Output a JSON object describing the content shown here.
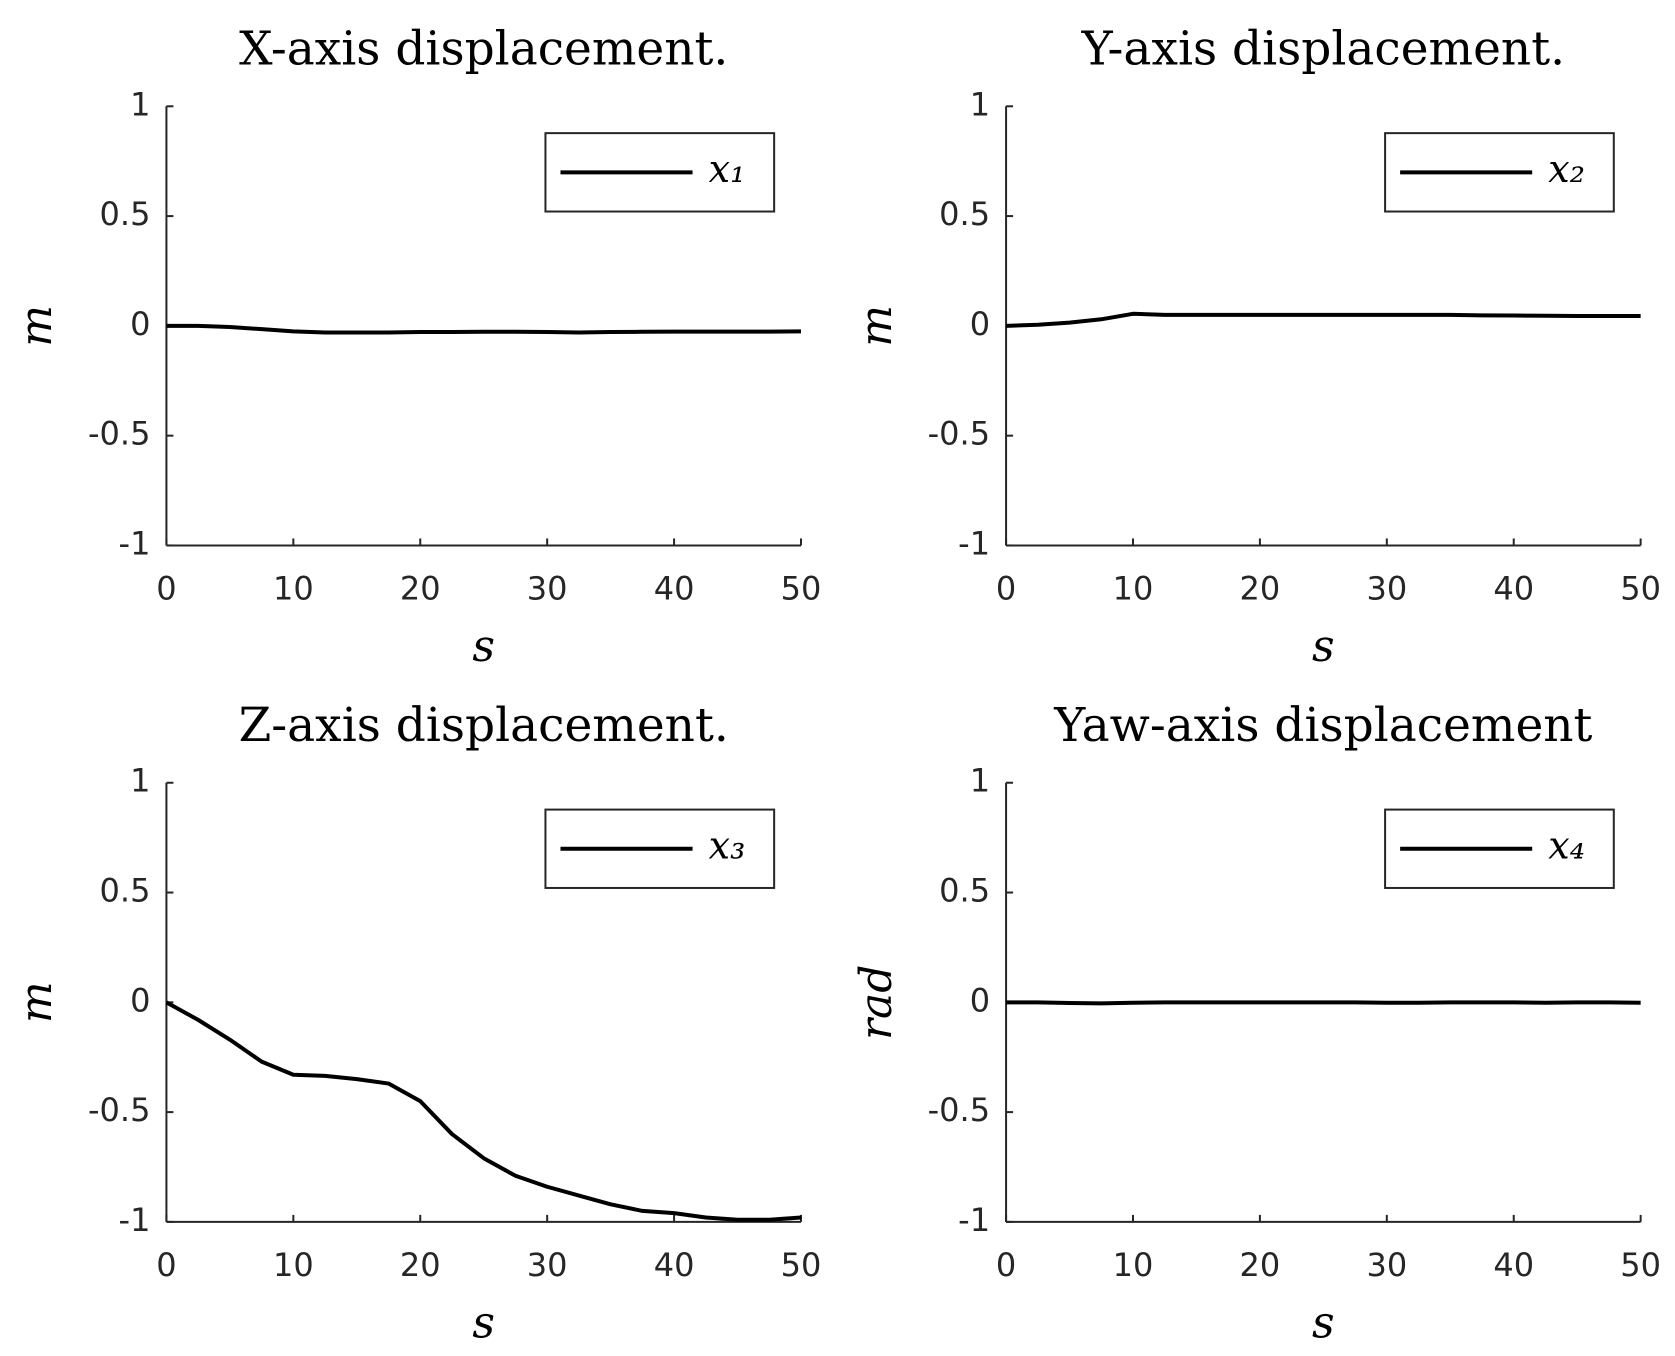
{
  "chart_data": [
    {
      "type": "line",
      "title": "X-axis displacement.",
      "xlabel": "s",
      "ylabel": "m",
      "x": [
        0,
        2.5,
        5,
        7.5,
        10,
        12.5,
        15,
        17.5,
        20,
        22.5,
        25,
        27.5,
        30,
        32.5,
        35,
        37.5,
        40,
        42.5,
        45,
        47.5,
        50
      ],
      "series": [
        {
          "name": "x₁",
          "color": "#000000",
          "values": [
            0,
            0,
            -0.005,
            -0.015,
            -0.025,
            -0.03,
            -0.03,
            -0.03,
            -0.028,
            -0.028,
            -0.027,
            -0.027,
            -0.028,
            -0.03,
            -0.028,
            -0.027,
            -0.026,
            -0.026,
            -0.026,
            -0.026,
            -0.025
          ]
        }
      ],
      "xlim": [
        0,
        50
      ],
      "ylim": [
        -1,
        1
      ],
      "xticks": [
        0,
        10,
        20,
        30,
        40,
        50
      ],
      "yticks": [
        -1,
        -0.5,
        0,
        0.5,
        1
      ],
      "legend": "upper right"
    },
    {
      "type": "line",
      "title": "Y-axis displacement.",
      "xlabel": "s",
      "ylabel": "m",
      "x": [
        0,
        2.5,
        5,
        7.5,
        10,
        12.5,
        15,
        17.5,
        20,
        22.5,
        25,
        27.5,
        30,
        32.5,
        35,
        37.5,
        40,
        42.5,
        45,
        47.5,
        50
      ],
      "series": [
        {
          "name": "x₂",
          "color": "#000000",
          "values": [
            0,
            0.005,
            0.015,
            0.03,
            0.055,
            0.05,
            0.05,
            0.05,
            0.05,
            0.05,
            0.05,
            0.05,
            0.05,
            0.05,
            0.05,
            0.048,
            0.047,
            0.046,
            0.045,
            0.045,
            0.045
          ]
        }
      ],
      "xlim": [
        0,
        50
      ],
      "ylim": [
        -1,
        1
      ],
      "xticks": [
        0,
        10,
        20,
        30,
        40,
        50
      ],
      "yticks": [
        -1,
        -0.5,
        0,
        0.5,
        1
      ],
      "legend": "upper right"
    },
    {
      "type": "line",
      "title": "Z-axis displacement.",
      "xlabel": "s",
      "ylabel": "m",
      "x": [
        0,
        2.5,
        5,
        7.5,
        10,
        12.5,
        15,
        17.5,
        20,
        22.5,
        25,
        27.5,
        30,
        32.5,
        35,
        37.5,
        40,
        42.5,
        45,
        47.5,
        50
      ],
      "series": [
        {
          "name": "x₃",
          "color": "#000000",
          "values": [
            0,
            -0.08,
            -0.17,
            -0.27,
            -0.33,
            -0.335,
            -0.35,
            -0.37,
            -0.45,
            -0.6,
            -0.71,
            -0.79,
            -0.84,
            -0.88,
            -0.92,
            -0.95,
            -0.96,
            -0.98,
            -0.99,
            -0.99,
            -0.98
          ]
        }
      ],
      "xlim": [
        0,
        50
      ],
      "ylim": [
        -1,
        1
      ],
      "xticks": [
        0,
        10,
        20,
        30,
        40,
        50
      ],
      "yticks": [
        -1,
        -0.5,
        0,
        0.5,
        1
      ],
      "legend": "upper right"
    },
    {
      "type": "line",
      "title": "Yaw-axis displacement",
      "xlabel": "s",
      "ylabel": "rad",
      "x": [
        0,
        2.5,
        5,
        7.5,
        10,
        12.5,
        15,
        17.5,
        20,
        22.5,
        25,
        27.5,
        30,
        32.5,
        35,
        37.5,
        40,
        42.5,
        45,
        47.5,
        50
      ],
      "series": [
        {
          "name": "x₄",
          "color": "#000000",
          "values": [
            0,
            0,
            -0.003,
            -0.005,
            -0.002,
            0,
            0,
            0,
            0,
            0,
            0,
            0,
            -0.002,
            -0.002,
            0,
            0,
            0,
            -0.002,
            0,
            0,
            -0.002
          ]
        }
      ],
      "xlim": [
        0,
        50
      ],
      "ylim": [
        -1,
        1
      ],
      "xticks": [
        0,
        10,
        20,
        30,
        40,
        50
      ],
      "yticks": [
        -1,
        -0.5,
        0,
        0.5,
        1
      ],
      "legend": "upper right"
    }
  ]
}
